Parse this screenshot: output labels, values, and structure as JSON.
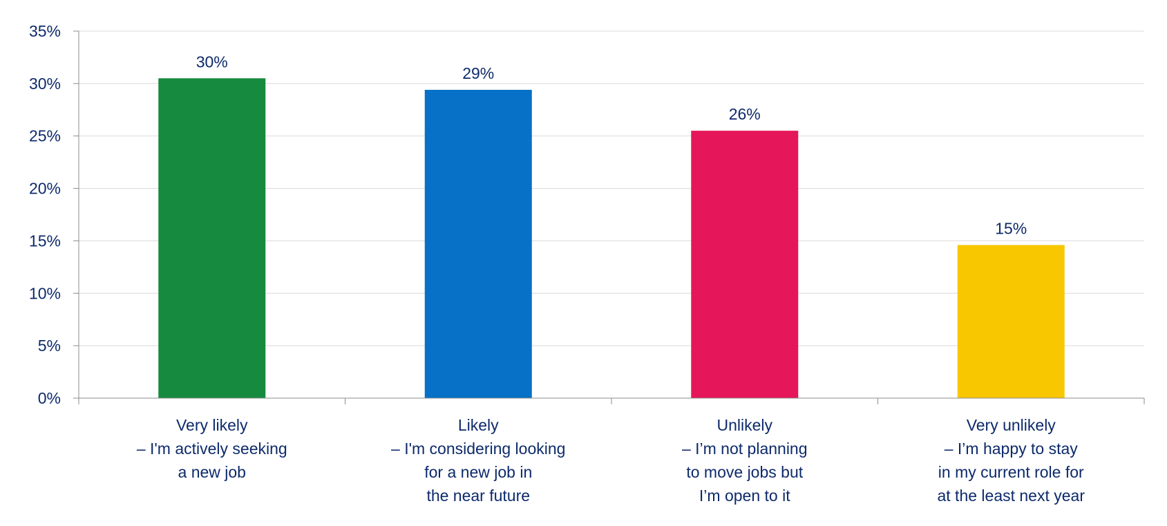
{
  "chart_data": {
    "type": "bar",
    "categories": [
      [
        "Very likely",
        "– I'm actively seeking",
        "a new job"
      ],
      [
        "Likely",
        "– I'm considering looking",
        "for a new job in",
        "the near future"
      ],
      [
        "Unlikely",
        "– I’m not planning",
        "to move jobs but",
        "I’m open to it"
      ],
      [
        "Very unlikely",
        "– I’m happy to stay",
        "in my current role for",
        "at the least next year"
      ]
    ],
    "values": [
      30.5,
      29.4,
      25.5,
      14.6
    ],
    "data_labels": [
      "30%",
      "29%",
      "26%",
      "15%"
    ],
    "colors": [
      "#168A3E",
      "#0671C6",
      "#E5165A",
      "#F8C700"
    ],
    "ylim": [
      0,
      35
    ],
    "yticks": [
      0,
      5,
      10,
      15,
      20,
      25,
      30,
      35
    ],
    "ytick_labels": [
      "0%",
      "5%",
      "10%",
      "15%",
      "20%",
      "25%",
      "30%",
      "35%"
    ],
    "grid": true,
    "legend": "none",
    "text_color": "#0D2A6B"
  }
}
